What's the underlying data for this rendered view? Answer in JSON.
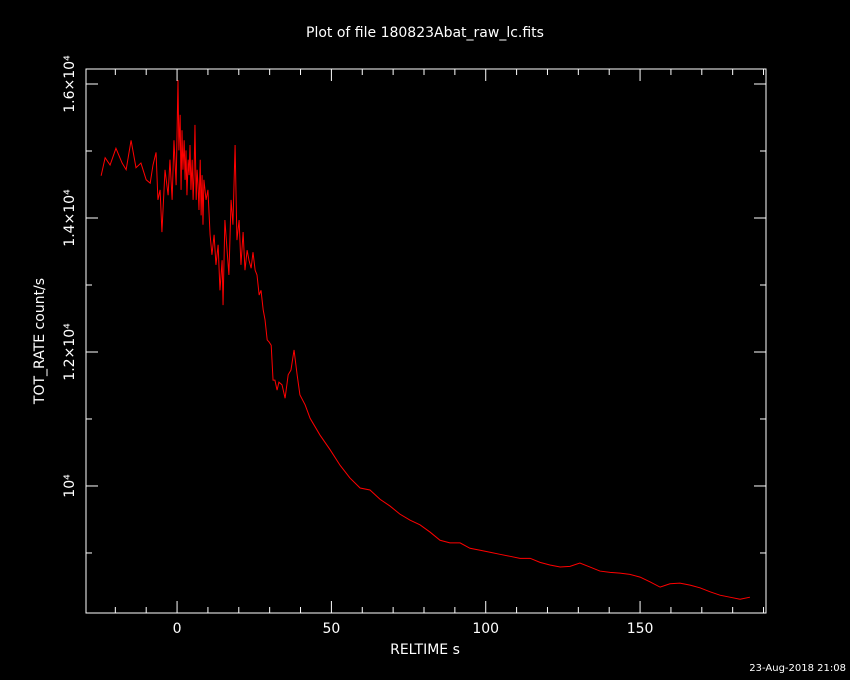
{
  "chart_data": {
    "type": "line",
    "title": "Plot of file 180823Abat_raw_lc.fits",
    "x_label": "RELTIME  s",
    "y_label": "TOT_RATE  count/s",
    "footer": "23-Aug-2018 21:08",
    "xlim": [
      -29.5,
      190.8
    ],
    "ylim": [
      8104,
      16224
    ],
    "xticks": [
      0,
      50,
      100,
      150
    ],
    "xminor": [
      -20,
      -10,
      10,
      20,
      30,
      40,
      60,
      70,
      80,
      90,
      110,
      120,
      130,
      140,
      160,
      170,
      180,
      190
    ],
    "yticks": [
      {
        "value": 10000,
        "label": "10⁴"
      },
      {
        "value": 12000,
        "label": "1.2×10⁴"
      },
      {
        "value": 14000,
        "label": "1.4×10⁴"
      },
      {
        "value": 16000,
        "label": "1.6×10⁴"
      }
    ],
    "yminor": [
      9000,
      11000,
      13000,
      15000
    ],
    "frame_color": "#ffffff",
    "x": [
      -24.6,
      -23.3,
      -21.7,
      -19.8,
      -17.8,
      -16.5,
      -14.9,
      -13.3,
      -11.7,
      -10.0,
      -8.7,
      -7.8,
      -6.8,
      -6.2,
      -5.5,
      -4.9,
      -3.9,
      -2.9,
      -2.3,
      -1.6,
      -1.0,
      -0.3,
      0.3,
      0.6,
      1.0,
      1.3,
      1.6,
      1.9,
      2.3,
      2.6,
      2.9,
      3.2,
      3.6,
      3.9,
      4.2,
      4.5,
      4.9,
      5.2,
      5.5,
      5.8,
      6.2,
      6.5,
      6.8,
      7.1,
      7.5,
      7.8,
      8.1,
      8.4,
      8.7,
      9.4,
      10.0,
      10.7,
      11.3,
      12.0,
      12.6,
      13.3,
      13.9,
      14.6,
      14.9,
      15.5,
      16.2,
      16.8,
      17.5,
      18.1,
      18.8,
      19.4,
      20.1,
      20.7,
      21.4,
      22.0,
      22.7,
      23.3,
      24.0,
      24.6,
      25.3,
      25.9,
      26.6,
      27.2,
      27.9,
      28.5,
      29.2,
      29.8,
      30.5,
      31.1,
      31.7,
      32.4,
      33.0,
      34.0,
      35.0,
      36.0,
      36.9,
      37.9,
      38.9,
      39.8,
      41.5,
      43.1,
      46.3,
      49.6,
      52.8,
      56.0,
      59.3,
      62.5,
      65.8,
      69.0,
      72.2,
      75.5,
      78.7,
      82.0,
      85.2,
      88.4,
      91.7,
      94.9,
      98.2,
      101.4,
      104.6,
      107.9,
      111.1,
      114.4,
      117.6,
      120.8,
      124.1,
      127.3,
      130.5,
      133.8,
      137.0,
      140.3,
      143.5,
      146.7,
      150.0,
      153.2,
      156.5,
      159.7,
      162.9,
      166.2,
      169.4,
      172.7,
      175.9,
      179.1,
      182.4,
      185.6
    ],
    "series": [
      {
        "name": "TOT_RATE",
        "color": "#ff0000",
        "values": [
          14630,
          14900,
          14790,
          15040,
          14820,
          14720,
          15160,
          14750,
          14820,
          14570,
          14520,
          14790,
          14980,
          14270,
          14420,
          13790,
          14720,
          14340,
          14870,
          14270,
          15160,
          14490,
          16060,
          15010,
          15540,
          14420,
          15310,
          14720,
          15160,
          14570,
          15010,
          14340,
          14870,
          14640,
          15090,
          14420,
          14870,
          14270,
          14640,
          15390,
          14270,
          14720,
          14490,
          14120,
          14870,
          14040,
          14640,
          13900,
          14570,
          14270,
          14420,
          13750,
          13450,
          13750,
          13300,
          13600,
          12920,
          13370,
          12700,
          13970,
          13520,
          13150,
          14270,
          13900,
          15090,
          13670,
          13970,
          13300,
          13790,
          13220,
          13520,
          13370,
          13250,
          13490,
          13220,
          13150,
          12850,
          12920,
          12630,
          12480,
          12180,
          12150,
          12100,
          11580,
          11580,
          11430,
          11550,
          11510,
          11310,
          11660,
          11730,
          12030,
          11660,
          11360,
          11210,
          11010,
          10760,
          10540,
          10310,
          10120,
          9970,
          9940,
          9800,
          9700,
          9580,
          9490,
          9420,
          9310,
          9190,
          9150,
          9150,
          9070,
          9040,
          9010,
          8980,
          8950,
          8920,
          8920,
          8860,
          8820,
          8790,
          8800,
          8850,
          8790,
          8730,
          8710,
          8700,
          8680,
          8640,
          8570,
          8490,
          8540,
          8550,
          8520,
          8480,
          8420,
          8370,
          8340,
          8310,
          8340
        ]
      }
    ]
  }
}
